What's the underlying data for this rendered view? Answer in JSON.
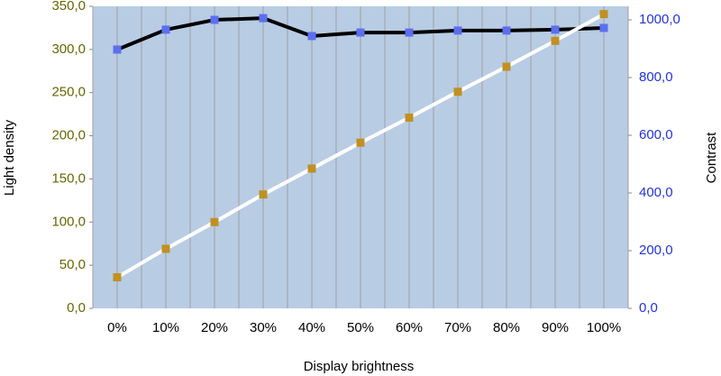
{
  "chart_data": {
    "type": "line",
    "x_label": "Display brightness",
    "y_label": "Light density",
    "y2_label": "Contrast",
    "categories": [
      "0%",
      "10%",
      "20%",
      "30%",
      "40%",
      "50%",
      "60%",
      "70%",
      "80%",
      "90%",
      "100%"
    ],
    "series": [
      {
        "name": "Contrast",
        "axis": "y2",
        "color": "#000000",
        "marker_color": "#5b6ff0",
        "values": [
          897,
          966,
          1000,
          1006,
          944,
          956,
          956,
          963,
          963,
          966,
          972
        ]
      },
      {
        "name": "Light density",
        "color": "#ffffff",
        "marker_color": "#c09020",
        "values": [
          36,
          69,
          100,
          132,
          162,
          192,
          221,
          251,
          280,
          310,
          341
        ]
      }
    ],
    "ylim": [
      0,
      350
    ],
    "yticks": [
      {
        "value": 0,
        "label": "0,0"
      },
      {
        "value": 50,
        "label": "50,0"
      },
      {
        "value": 100,
        "label": "100,0"
      },
      {
        "value": 150,
        "label": "150,0"
      },
      {
        "value": 200,
        "label": "200,0"
      },
      {
        "value": 250,
        "label": "250,0"
      },
      {
        "value": 300,
        "label": "300,0"
      },
      {
        "value": 350,
        "label": "350,0"
      }
    ],
    "y2lim": [
      0,
      1047
    ],
    "y2ticks": [
      {
        "value": 0,
        "label": "0,0"
      },
      {
        "value": 200,
        "label": "200,0"
      },
      {
        "value": 400,
        "label": "400,0"
      },
      {
        "value": 600,
        "label": "600,0"
      },
      {
        "value": 800,
        "label": "800,0"
      },
      {
        "value": 1000,
        "label": "1000,0"
      }
    ],
    "ytick_color": "#666600",
    "y2tick_color": "#2233dd",
    "plot_background": "#b8cce4",
    "grid": true
  }
}
